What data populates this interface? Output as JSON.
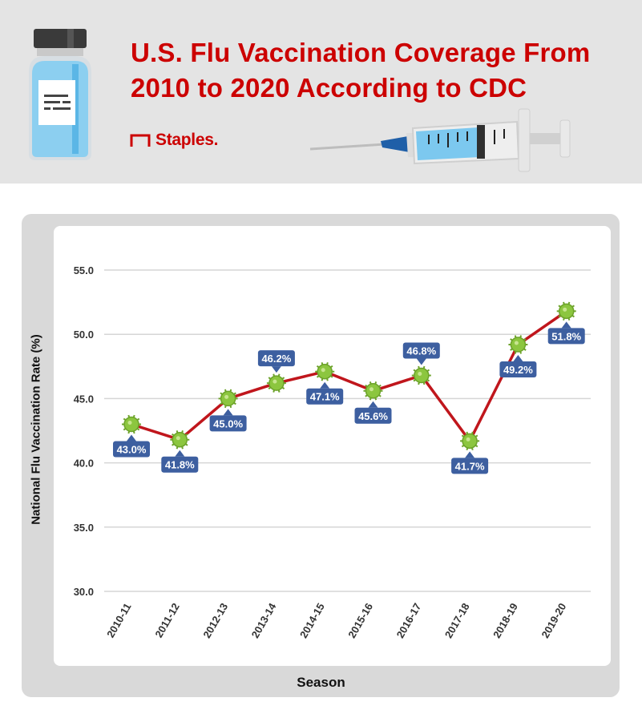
{
  "header": {
    "title": "U.S. Flu Vaccination Coverage From 2010 to 2020 According to CDC",
    "brand": "Staples.",
    "icons": [
      "vaccine-vial-icon",
      "syringe-icon",
      "staples-logo-icon"
    ]
  },
  "colors": {
    "title": "#cc0000",
    "line": "#c0161c",
    "marker": "#8cc63f",
    "label_bg": "#3d5fa0",
    "header_bg": "#e4e4e4",
    "panel_bg": "#d9d9d9"
  },
  "chart_data": {
    "type": "line",
    "title": "",
    "xlabel": "Season",
    "ylabel": "National Flu Vaccination Rate (%)",
    "ylim": [
      30,
      55
    ],
    "yticks": [
      "30.0",
      "35.0",
      "40.0",
      "45.0",
      "50.0",
      "55.0"
    ],
    "grid": true,
    "categories": [
      "2010-11",
      "2011-12",
      "2012-13",
      "2013-14",
      "2014-15",
      "2015-16",
      "2016-17",
      "2017-18",
      "2018-19",
      "2019-20"
    ],
    "series": [
      {
        "values": [
          43.0,
          41.8,
          45.0,
          46.2,
          47.1,
          45.6,
          46.8,
          41.7,
          49.2,
          51.8
        ],
        "labels": [
          "43.0%",
          "41.8%",
          "45.0%",
          "46.2%",
          "47.1%",
          "45.6%",
          "46.8%",
          "41.7%",
          "49.2%",
          "51.8%"
        ],
        "label_side": [
          "below",
          "below",
          "below",
          "above",
          "below",
          "below",
          "above",
          "below",
          "below",
          "below"
        ]
      }
    ]
  }
}
